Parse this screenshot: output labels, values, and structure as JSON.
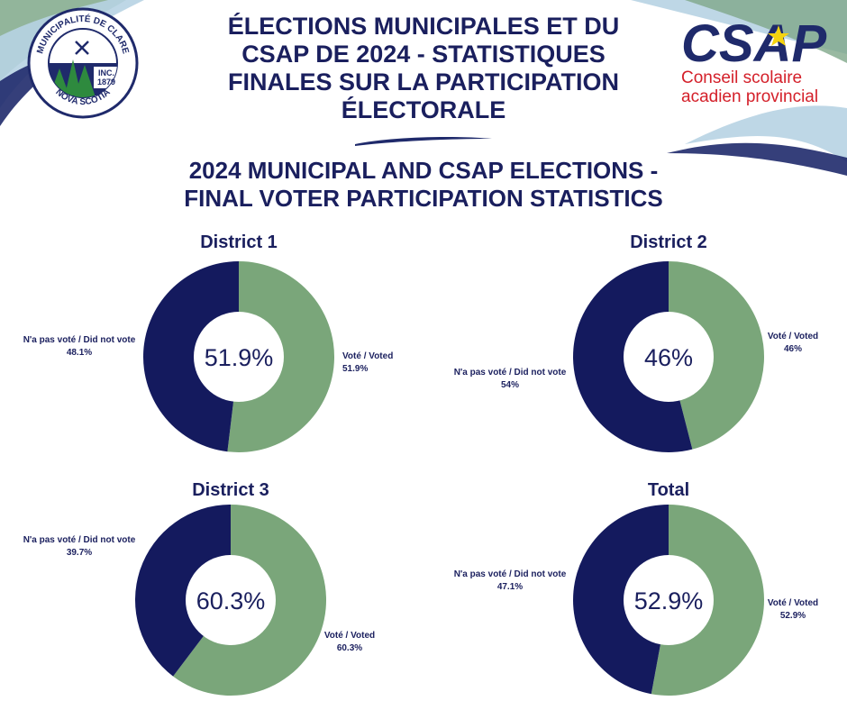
{
  "header": {
    "title_fr_lines": [
      "ÉLECTIONS MUNICIPALES ET DU",
      "CSAP DE 2024 - STATISTIQUES",
      "FINALES SUR LA PARTICIPATION",
      "ÉLECTORALE"
    ],
    "title_en_lines": [
      "2024 MUNICIPAL AND CSAP ELECTIONS -",
      "FINAL VOTER PARTICIPATION STATISTICS"
    ]
  },
  "logos": {
    "clare": {
      "ring_text_top": "MUNICIPALITÉ DE CLARE",
      "ring_text_bottom": "NOVA SCOTIA",
      "inc_text": "INC.",
      "year_text": "1879"
    },
    "csap": {
      "wordmark": "CSAP",
      "line1": "Conseil scolaire",
      "line2": "acadien provincial"
    }
  },
  "colors": {
    "voted": "#7aa67a",
    "did_not_vote": "#141a5e",
    "text": "#1a1f5e",
    "accent_red": "#d4202a",
    "accent_star": "#f5d30f"
  },
  "chart_data": [
    {
      "type": "pie",
      "title": "District 1",
      "center_label": "51.9%",
      "slices": [
        {
          "name": "Voté / Voted",
          "value": 51.9,
          "label": "51.9%"
        },
        {
          "name": "N'a pas voté / Did not vote",
          "value": 48.1,
          "label": "48.1%"
        }
      ]
    },
    {
      "type": "pie",
      "title": "District 2",
      "center_label": "46%",
      "slices": [
        {
          "name": "Voté / Voted",
          "value": 46,
          "label": "46%"
        },
        {
          "name": "N'a pas voté / Did not vote",
          "value": 54,
          "label": "54%"
        }
      ]
    },
    {
      "type": "pie",
      "title": "District 3",
      "center_label": "60.3%",
      "slices": [
        {
          "name": "Voté / Voted",
          "value": 60.3,
          "label": "60.3%"
        },
        {
          "name": "N'a pas voté / Did not vote",
          "value": 39.7,
          "label": "39.7%"
        }
      ]
    },
    {
      "type": "pie",
      "title": "Total",
      "center_label": "52.9%",
      "slices": [
        {
          "name": "Voté / Voted",
          "value": 52.9,
          "label": "52.9%"
        },
        {
          "name": "N'a pas voté / Did not vote",
          "value": 47.1,
          "label": "47.1%"
        }
      ]
    }
  ]
}
